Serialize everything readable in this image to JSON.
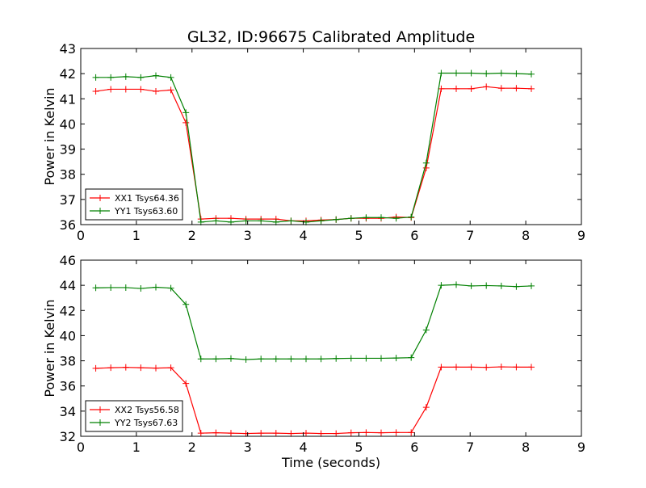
{
  "title": "GL32, ID:96675 Calibrated Amplitude",
  "xlabel": "Time (seconds)",
  "chart_data": [
    {
      "type": "line",
      "title": "GL32, ID:96675 Calibrated Amplitude",
      "xlabel": "",
      "ylabel": "Power in Kelvin",
      "xlim": [
        0,
        9
      ],
      "ylim": [
        36,
        43
      ],
      "xticks": [
        0,
        1,
        2,
        3,
        4,
        5,
        6,
        7,
        8,
        9
      ],
      "yticks": [
        36,
        37,
        38,
        39,
        40,
        41,
        42,
        43
      ],
      "legend_position": "lower-left",
      "grid": false,
      "x": [
        0.27,
        0.54,
        0.81,
        1.08,
        1.35,
        1.62,
        1.89,
        2.16,
        2.43,
        2.7,
        2.97,
        3.24,
        3.51,
        3.78,
        4.05,
        4.32,
        4.59,
        4.86,
        5.13,
        5.4,
        5.67,
        5.94,
        6.21,
        6.48,
        6.75,
        7.02,
        7.29,
        7.56,
        7.83,
        8.1
      ],
      "series": [
        {
          "name": "XX1 Tsys64.36",
          "color": "#ff0000",
          "values": [
            41.3,
            41.38,
            41.38,
            41.38,
            41.3,
            41.35,
            40.05,
            36.22,
            36.25,
            36.25,
            36.22,
            36.22,
            36.22,
            36.15,
            36.15,
            36.18,
            36.2,
            36.25,
            36.25,
            36.25,
            36.3,
            36.28,
            38.25,
            41.4,
            41.4,
            41.4,
            41.48,
            41.42,
            41.42,
            41.4
          ]
        },
        {
          "name": "YY1 Tsys63.60",
          "color": "#008000",
          "values": [
            41.85,
            41.85,
            41.88,
            41.85,
            41.92,
            41.85,
            40.45,
            36.1,
            36.15,
            36.1,
            36.15,
            36.15,
            36.1,
            36.15,
            36.1,
            36.15,
            36.2,
            36.25,
            36.28,
            36.28,
            36.25,
            36.3,
            38.45,
            42.02,
            42.02,
            42.02,
            42.0,
            42.02,
            42.0,
            41.98
          ]
        }
      ]
    },
    {
      "type": "line",
      "title": "",
      "xlabel": "Time (seconds)",
      "ylabel": "Power in Kelvin",
      "xlim": [
        0,
        9
      ],
      "ylim": [
        32,
        46
      ],
      "xticks": [
        0,
        1,
        2,
        3,
        4,
        5,
        6,
        7,
        8,
        9
      ],
      "yticks": [
        32,
        34,
        36,
        38,
        40,
        42,
        44,
        46
      ],
      "legend_position": "lower-left",
      "grid": false,
      "x": [
        0.27,
        0.54,
        0.81,
        1.08,
        1.35,
        1.62,
        1.89,
        2.16,
        2.43,
        2.7,
        2.97,
        3.24,
        3.51,
        3.78,
        4.05,
        4.32,
        4.59,
        4.86,
        5.13,
        5.4,
        5.67,
        5.94,
        6.21,
        6.48,
        6.75,
        7.02,
        7.29,
        7.56,
        7.83,
        8.1
      ],
      "series": [
        {
          "name": "XX2 Tsys56.58",
          "color": "#ff0000",
          "values": [
            37.4,
            37.45,
            37.48,
            37.45,
            37.42,
            37.45,
            36.2,
            32.25,
            32.28,
            32.25,
            32.22,
            32.25,
            32.25,
            32.22,
            32.25,
            32.22,
            32.22,
            32.28,
            32.3,
            32.28,
            32.3,
            32.3,
            34.3,
            37.5,
            37.5,
            37.5,
            37.48,
            37.52,
            37.5,
            37.5
          ]
        },
        {
          "name": "YY2 Tsys67.63",
          "color": "#008000",
          "values": [
            43.8,
            43.82,
            43.82,
            43.75,
            43.85,
            43.78,
            42.48,
            38.15,
            38.15,
            38.18,
            38.1,
            38.15,
            38.15,
            38.15,
            38.15,
            38.15,
            38.18,
            38.2,
            38.2,
            38.2,
            38.22,
            38.25,
            40.45,
            44.0,
            44.05,
            43.95,
            43.98,
            43.95,
            43.9,
            43.95
          ]
        }
      ]
    }
  ]
}
